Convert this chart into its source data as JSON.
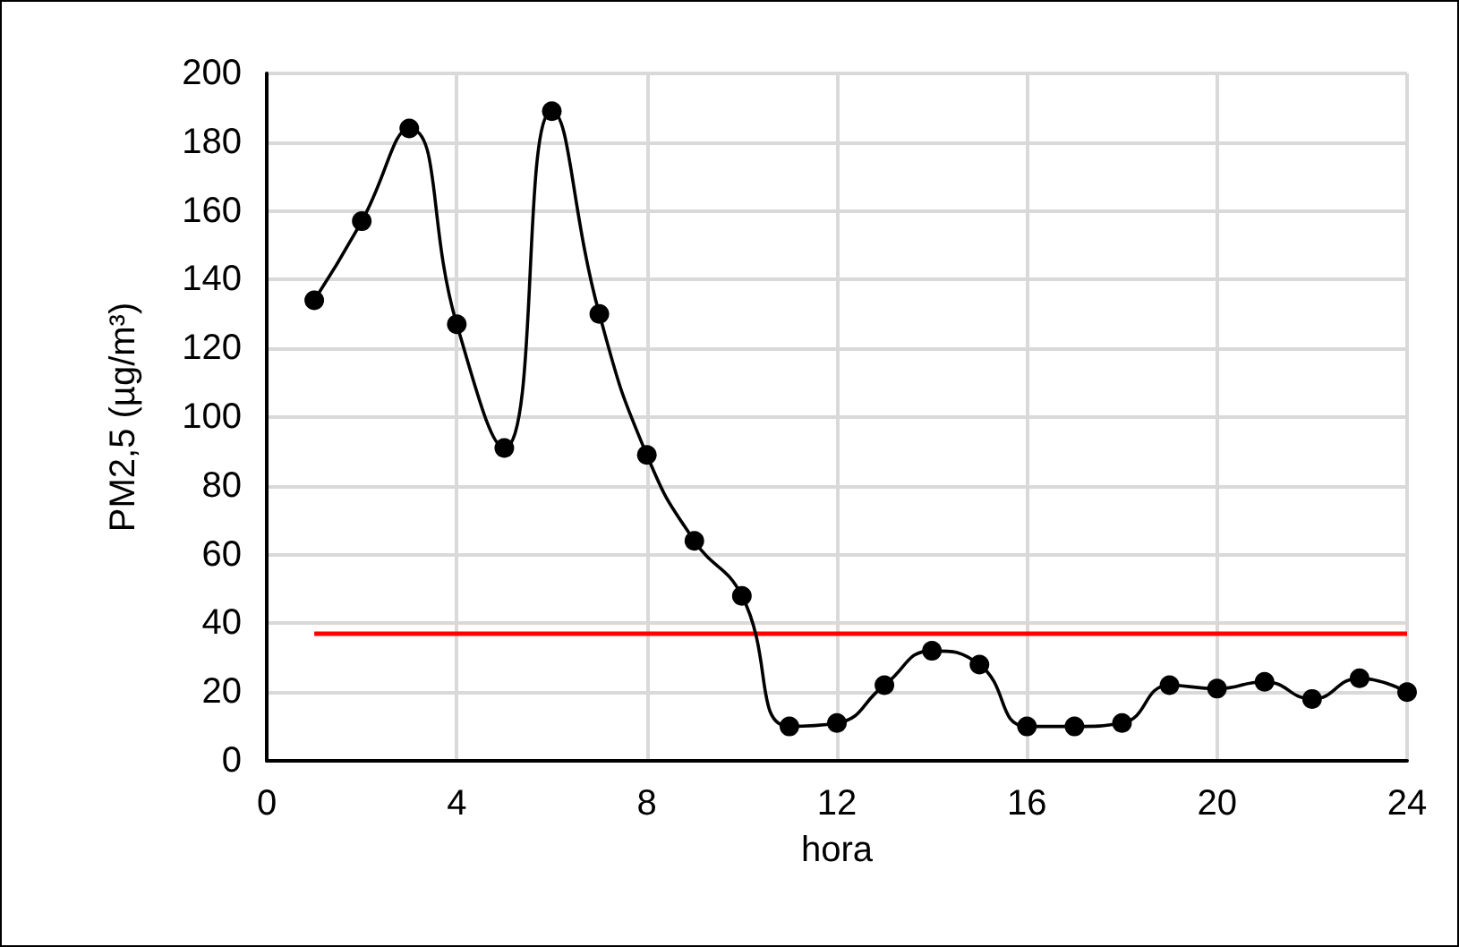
{
  "chart_data": {
    "type": "line",
    "xlabel": "hora",
    "ylabel": "PM2,5 (µg/m³)",
    "x": [
      1,
      2,
      3,
      4,
      5,
      6,
      7,
      8,
      9,
      10,
      11,
      12,
      13,
      14,
      15,
      16,
      17,
      18,
      19,
      20,
      21,
      22,
      23,
      24
    ],
    "series": [
      {
        "color": "#000000",
        "values": [
          134,
          157,
          184,
          127,
          91,
          189,
          130,
          89,
          64,
          48,
          10,
          11,
          22,
          32,
          28,
          10,
          10,
          11,
          22,
          21,
          23,
          18,
          24,
          20
        ]
      }
    ],
    "xlim": [
      0,
      24
    ],
    "xticks": [
      0,
      4,
      8,
      12,
      16,
      20,
      24
    ],
    "ylim": [
      0,
      200
    ],
    "yticks": [
      0,
      20,
      40,
      60,
      80,
      100,
      120,
      140,
      160,
      180,
      200
    ],
    "ref_lines": [
      {
        "axis": "y",
        "value": 37,
        "color": "#ff0000"
      }
    ],
    "grid": true,
    "marker": "circle",
    "line_style": "solid"
  }
}
